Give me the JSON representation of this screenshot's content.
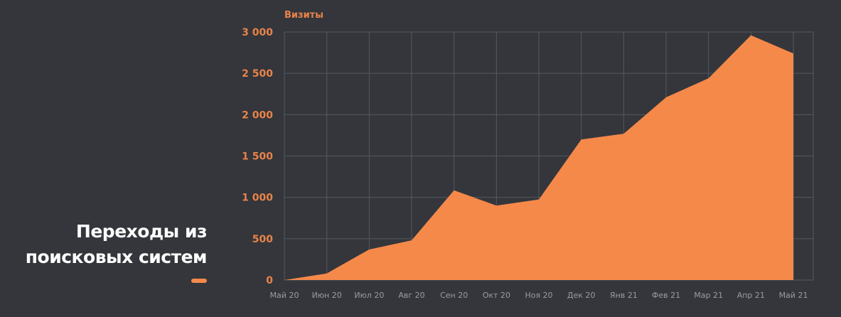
{
  "heading": {
    "line1": "Переходы из",
    "line2": "поисковых систем"
  },
  "colors": {
    "background": "#34363b",
    "area": "#f5894a",
    "axis_label": "#e8834a",
    "x_tick": "#9a9ca2",
    "grid": "#55585e"
  },
  "chart_data": {
    "type": "area",
    "ylabel": "Визиты",
    "xlabel": "",
    "ylim": [
      0,
      3000
    ],
    "y_ticks": [
      0,
      500,
      1000,
      1500,
      2000,
      2500,
      3000
    ],
    "y_tick_labels": [
      "0",
      "500",
      "1 000",
      "1 500",
      "2 000",
      "2 500",
      "3 000"
    ],
    "categories": [
      "Май 20",
      "Июн 20",
      "Июл 20",
      "Авг 20",
      "Сен 20",
      "Окт 20",
      "Ноя 20",
      "Дек 20",
      "Янв 21",
      "Фев 21",
      "Мар 21",
      "Апр 21",
      "Май 21"
    ],
    "series": [
      {
        "values": [
          0,
          80,
          370,
          480,
          1085,
          900,
          975,
          1700,
          1770,
          2210,
          2440,
          2960,
          2740
        ]
      }
    ],
    "grid": true,
    "legend": "none"
  }
}
